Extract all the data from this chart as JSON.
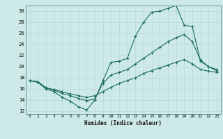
{
  "xlabel": "Humidex (Indice chaleur)",
  "ylabel": "",
  "bg_color": "#ceeae8",
  "grid_color": "#b8d8d5",
  "line_color": "#1a6b60",
  "xlim": [
    -0.5,
    23.5
  ],
  "ylim": [
    11.5,
    31.0
  ],
  "xticks": [
    0,
    1,
    2,
    3,
    4,
    5,
    6,
    7,
    8,
    9,
    10,
    11,
    12,
    13,
    14,
    15,
    16,
    17,
    18,
    19,
    20,
    21,
    22,
    23
  ],
  "yticks": [
    12,
    14,
    16,
    18,
    20,
    22,
    24,
    26,
    28,
    30
  ],
  "line1_x": [
    0,
    1,
    2,
    3,
    4,
    5,
    6,
    7,
    8,
    9,
    10,
    11,
    12,
    13,
    14,
    15,
    16,
    17,
    18,
    19,
    20,
    21,
    22,
    23
  ],
  "line1_y": [
    17.5,
    17.2,
    16.0,
    15.5,
    14.5,
    13.8,
    12.8,
    12.2,
    14.0,
    17.5,
    20.8,
    21.0,
    21.5,
    25.5,
    28.0,
    29.8,
    30.0,
    30.5,
    31.0,
    27.5,
    27.2,
    21.0,
    20.0,
    19.3
  ],
  "line2_x": [
    0,
    1,
    2,
    3,
    4,
    5,
    6,
    7,
    8,
    9,
    10,
    11,
    12,
    13,
    14,
    15,
    16,
    17,
    18,
    19,
    20,
    21,
    22,
    23
  ],
  "line2_y": [
    17.5,
    17.3,
    16.2,
    15.8,
    15.2,
    14.8,
    14.3,
    13.9,
    14.2,
    17.0,
    18.5,
    19.0,
    19.5,
    20.5,
    21.5,
    22.5,
    23.5,
    24.5,
    25.2,
    25.8,
    24.5,
    21.2,
    20.0,
    19.5
  ],
  "line3_x": [
    0,
    1,
    2,
    3,
    4,
    5,
    6,
    7,
    8,
    9,
    10,
    11,
    12,
    13,
    14,
    15,
    16,
    17,
    18,
    19,
    20,
    21,
    22,
    23
  ],
  "line3_y": [
    17.5,
    17.3,
    16.2,
    15.9,
    15.5,
    15.1,
    14.8,
    14.5,
    14.8,
    15.5,
    16.3,
    17.0,
    17.5,
    18.0,
    18.8,
    19.3,
    19.8,
    20.3,
    20.8,
    21.3,
    20.5,
    19.5,
    19.2,
    19.0
  ]
}
